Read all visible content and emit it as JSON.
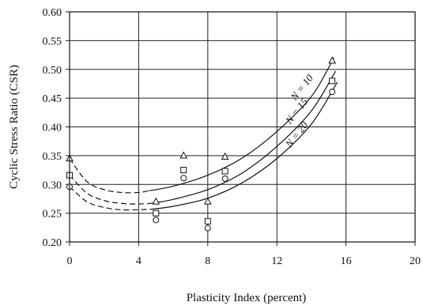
{
  "chart_data": {
    "type": "scatter",
    "title": "",
    "xlabel": "Plasticity Index (percent)",
    "ylabel": "Cyclic Stress Ratio (CSR)",
    "xlim": [
      0,
      20
    ],
    "ylim": [
      0.2,
      0.6
    ],
    "x_ticks": [
      0,
      4,
      8,
      12,
      16,
      20
    ],
    "y_ticks": [
      0.2,
      0.25,
      0.3,
      0.35,
      0.4,
      0.45,
      0.5,
      0.55,
      0.6
    ],
    "x_tick_labels": [
      "0",
      "4",
      "8",
      "12",
      "16",
      "20"
    ],
    "y_tick_labels": [
      "0.20",
      "0.25",
      "0.30",
      "0.35",
      "0.40",
      "0.45",
      "0.50",
      "0.55",
      "0.60"
    ],
    "grid": true,
    "series": [
      {
        "name": "N = 10",
        "marker": "triangle",
        "points": [
          [
            0,
            0.345
          ],
          [
            5,
            0.27
          ],
          [
            6.6,
            0.35
          ],
          [
            8,
            0.27
          ],
          [
            9,
            0.348
          ],
          [
            15.2,
            0.515
          ]
        ],
        "curve_dashed": [
          [
            0,
            0.345
          ],
          [
            1,
            0.305
          ],
          [
            2,
            0.291
          ],
          [
            3,
            0.286
          ],
          [
            4,
            0.286
          ],
          [
            4.6,
            0.289
          ]
        ],
        "curve_solid": [
          [
            4.6,
            0.289
          ],
          [
            6,
            0.297
          ],
          [
            8,
            0.316
          ],
          [
            10,
            0.346
          ],
          [
            12,
            0.392
          ],
          [
            14,
            0.453
          ],
          [
            15.3,
            0.52
          ]
        ]
      },
      {
        "name": "N = 15",
        "marker": "square",
        "points": [
          [
            0,
            0.316
          ],
          [
            5,
            0.25
          ],
          [
            6.6,
            0.325
          ],
          [
            8,
            0.236
          ],
          [
            9,
            0.323
          ],
          [
            15.2,
            0.48
          ]
        ],
        "curve_dashed": [
          [
            0,
            0.316
          ],
          [
            1,
            0.285
          ],
          [
            2,
            0.272
          ],
          [
            3,
            0.267
          ],
          [
            4,
            0.266
          ],
          [
            4.7,
            0.267
          ]
        ],
        "curve_solid": [
          [
            4.7,
            0.267
          ],
          [
            6,
            0.274
          ],
          [
            8,
            0.291
          ],
          [
            10,
            0.32
          ],
          [
            12,
            0.366
          ],
          [
            14,
            0.428
          ],
          [
            15.4,
            0.497
          ]
        ]
      },
      {
        "name": "N = 20",
        "marker": "circle",
        "points": [
          [
            0,
            0.296
          ],
          [
            5,
            0.238
          ],
          [
            6.6,
            0.311
          ],
          [
            8,
            0.224
          ],
          [
            9,
            0.31
          ],
          [
            15.2,
            0.461
          ]
        ],
        "curve_dashed": [
          [
            0,
            0.296
          ],
          [
            1,
            0.27
          ],
          [
            2,
            0.26
          ],
          [
            3,
            0.256
          ],
          [
            4,
            0.256
          ],
          [
            4.8,
            0.257
          ]
        ],
        "curve_solid": [
          [
            4.8,
            0.257
          ],
          [
            6,
            0.262
          ],
          [
            8,
            0.276
          ],
          [
            10,
            0.303
          ],
          [
            12,
            0.345
          ],
          [
            14,
            0.405
          ],
          [
            15.5,
            0.478
          ]
        ]
      }
    ],
    "curve_labels": [
      {
        "text": "N = 10",
        "x": 13.6,
        "y": 0.465
      },
      {
        "text": "N = 15",
        "x": 13.3,
        "y": 0.424
      },
      {
        "text": "N = 20",
        "x": 13.3,
        "y": 0.383
      }
    ]
  }
}
